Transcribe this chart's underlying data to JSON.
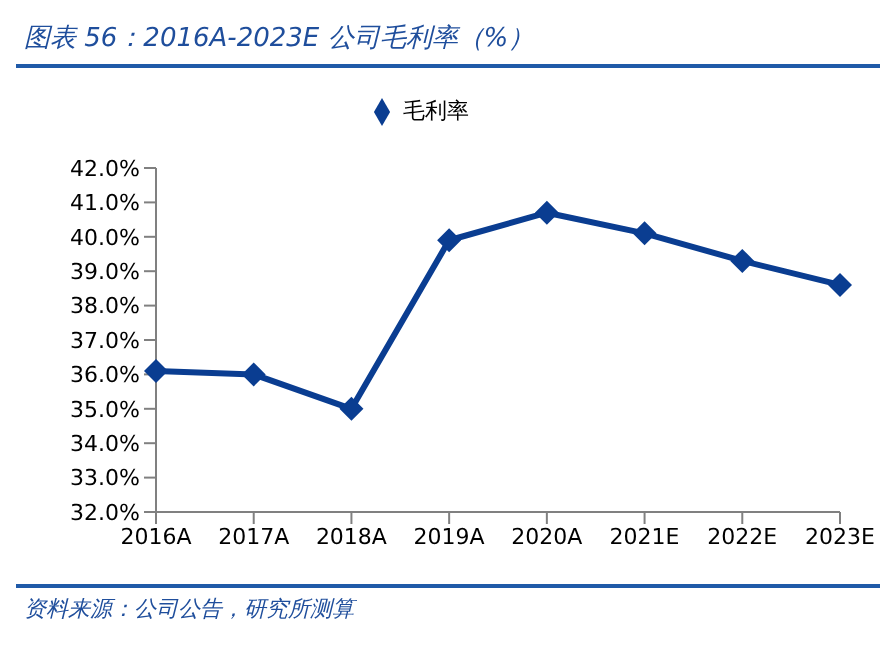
{
  "chart_data": {
    "type": "line",
    "title": "图表 56：2016A-2023E 公司毛利率（%）",
    "categories": [
      "2016A",
      "2017A",
      "2018A",
      "2019A",
      "2020A",
      "2021E",
      "2022E",
      "2023E"
    ],
    "series": [
      {
        "name": "毛利率",
        "color": "#0a3d91",
        "values": [
          36.1,
          36.0,
          35.0,
          39.9,
          40.7,
          40.1,
          39.3,
          38.6
        ]
      }
    ],
    "ylim": [
      32,
      42
    ],
    "yticks": [
      {
        "value": 32,
        "label": "32.0%"
      },
      {
        "value": 33,
        "label": "33.0%"
      },
      {
        "value": 34,
        "label": "34.0%"
      },
      {
        "value": 35,
        "label": "35.0%"
      },
      {
        "value": 36,
        "label": "36.0%"
      },
      {
        "value": 37,
        "label": "37.0%"
      },
      {
        "value": 38,
        "label": "38.0%"
      },
      {
        "value": 39,
        "label": "39.0%"
      },
      {
        "value": 40,
        "label": "40.0%"
      },
      {
        "value": 41,
        "label": "41.0%"
      },
      {
        "value": 42,
        "label": "42.0%"
      }
    ],
    "grid": false,
    "legend": "top",
    "marker": "diamond",
    "line_style": "solid",
    "annotations": [
      "资料来源：公司公告，研究所测算"
    ]
  }
}
